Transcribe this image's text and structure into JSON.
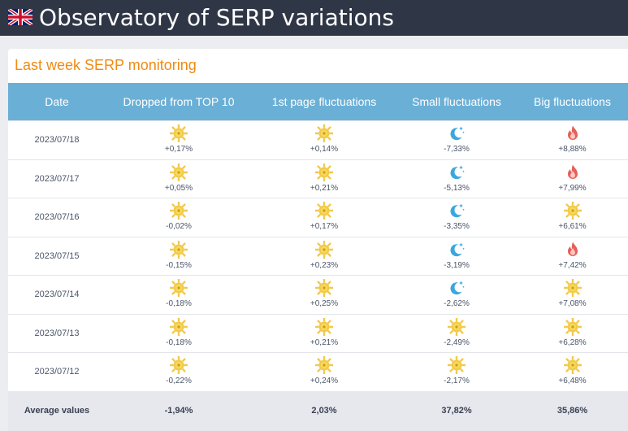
{
  "header": {
    "flag_icon": "uk-flag-icon",
    "title": "Observatory of SERP variations"
  },
  "panel": {
    "title": "Last week SERP monitoring"
  },
  "table": {
    "columns": [
      "Date",
      "Dropped from TOP 10",
      "1st page fluctuations",
      "Small fluctuations",
      "Big fluctuations"
    ],
    "rows": [
      {
        "date": "2023/07/18",
        "cells": [
          {
            "icon": "sun-icon",
            "value": "+0,17%"
          },
          {
            "icon": "sun-icon",
            "value": "+0,14%"
          },
          {
            "icon": "moon-icon",
            "value": "-7,33%"
          },
          {
            "icon": "fire-icon",
            "value": "+8,88%"
          }
        ]
      },
      {
        "date": "2023/07/17",
        "cells": [
          {
            "icon": "sun-icon",
            "value": "+0,05%"
          },
          {
            "icon": "sun-icon",
            "value": "+0,21%"
          },
          {
            "icon": "moon-icon",
            "value": "-5,13%"
          },
          {
            "icon": "fire-icon",
            "value": "+7,99%"
          }
        ]
      },
      {
        "date": "2023/07/16",
        "cells": [
          {
            "icon": "sun-icon",
            "value": "-0,02%"
          },
          {
            "icon": "sun-icon",
            "value": "+0,17%"
          },
          {
            "icon": "moon-icon",
            "value": "-3,35%"
          },
          {
            "icon": "sun-icon",
            "value": "+6,61%"
          }
        ]
      },
      {
        "date": "2023/07/15",
        "cells": [
          {
            "icon": "sun-icon",
            "value": "-0,15%"
          },
          {
            "icon": "sun-icon",
            "value": "+0,23%"
          },
          {
            "icon": "moon-icon",
            "value": "-3,19%"
          },
          {
            "icon": "fire-icon",
            "value": "+7,42%"
          }
        ]
      },
      {
        "date": "2023/07/14",
        "cells": [
          {
            "icon": "sun-icon",
            "value": "-0,18%"
          },
          {
            "icon": "sun-icon",
            "value": "+0,25%"
          },
          {
            "icon": "moon-icon",
            "value": "-2,62%"
          },
          {
            "icon": "sun-icon",
            "value": "+7,08%"
          }
        ]
      },
      {
        "date": "2023/07/13",
        "cells": [
          {
            "icon": "sun-icon",
            "value": "-0,18%"
          },
          {
            "icon": "sun-icon",
            "value": "+0,21%"
          },
          {
            "icon": "sun-icon",
            "value": "-2,49%"
          },
          {
            "icon": "sun-icon",
            "value": "+6,28%"
          }
        ]
      },
      {
        "date": "2023/07/12",
        "cells": [
          {
            "icon": "sun-icon",
            "value": "-0,22%"
          },
          {
            "icon": "sun-icon",
            "value": "+0,24%"
          },
          {
            "icon": "sun-icon",
            "value": "-2,17%"
          },
          {
            "icon": "sun-icon",
            "value": "+6,48%"
          }
        ]
      }
    ],
    "footer": {
      "label": "Average values",
      "values": [
        "-1,94%",
        "2,03%",
        "37,82%",
        "35,86%"
      ]
    }
  },
  "colors": {
    "topbar": "#2f3747",
    "accent_orange": "#f08a12",
    "table_header": "#6aafd6",
    "footer_bg": "#e6e8ee",
    "sun": "#f5c518",
    "moon": "#3aa7e0",
    "fire": "#e2504e"
  }
}
